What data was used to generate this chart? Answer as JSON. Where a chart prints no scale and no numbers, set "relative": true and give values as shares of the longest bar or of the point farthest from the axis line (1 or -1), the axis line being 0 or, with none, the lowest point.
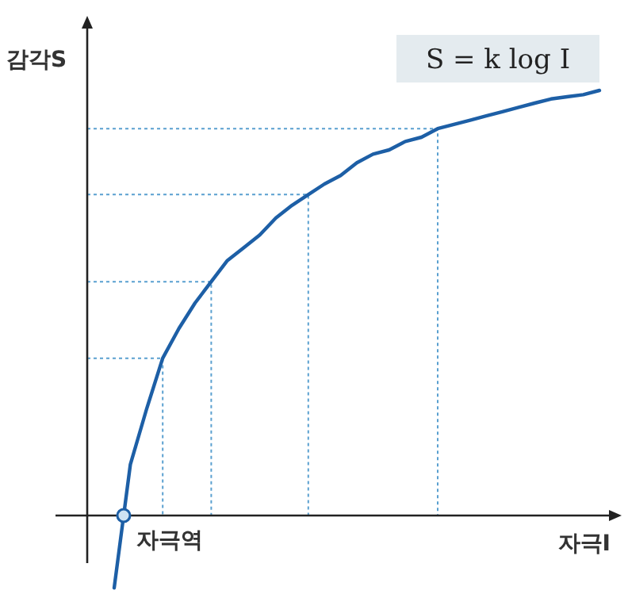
{
  "chart_data": {
    "type": "line",
    "relative": true,
    "xlabel": "자극I",
    "ylabel": "감각S",
    "annotations": [
      "S = k log I",
      "자극역"
    ],
    "marker": "none",
    "line_style": "solid",
    "categories": [
      null,
      null,
      null,
      null,
      null,
      null,
      null,
      null,
      null,
      null,
      null,
      null,
      null,
      null,
      null,
      null,
      null,
      null,
      null,
      null,
      null,
      null,
      null,
      null,
      null,
      null,
      null,
      null,
      null,
      null,
      null
    ],
    "series": [
      {
        "color": "#1d5fa6",
        "values": [
          -0.17,
          0.12,
          0.25,
          0.37,
          0.44,
          0.5,
          0.55,
          0.6,
          0.63,
          0.66,
          0.7,
          0.73,
          0.755,
          0.78,
          0.8,
          0.83,
          0.85,
          0.86,
          0.88,
          0.89,
          0.91,
          0.92,
          0.93,
          0.94,
          0.95,
          0.96,
          0.97,
          0.98,
          0.985,
          0.99,
          1.0
        ]
      }
    ],
    "ref_lines": [
      {
        "axis": "y",
        "value": 0.37,
        "label": null,
        "color": "#5aa0d0",
        "line_style": "dotted"
      },
      {
        "axis": "y",
        "value": 0.55,
        "label": null,
        "color": "#5aa0d0",
        "line_style": "dotted"
      },
      {
        "axis": "y",
        "value": 0.755,
        "label": null,
        "color": "#5aa0d0",
        "line_style": "dotted"
      },
      {
        "axis": "y",
        "value": 0.91,
        "label": null,
        "color": "#5aa0d0",
        "line_style": "dotted"
      }
    ]
  }
}
